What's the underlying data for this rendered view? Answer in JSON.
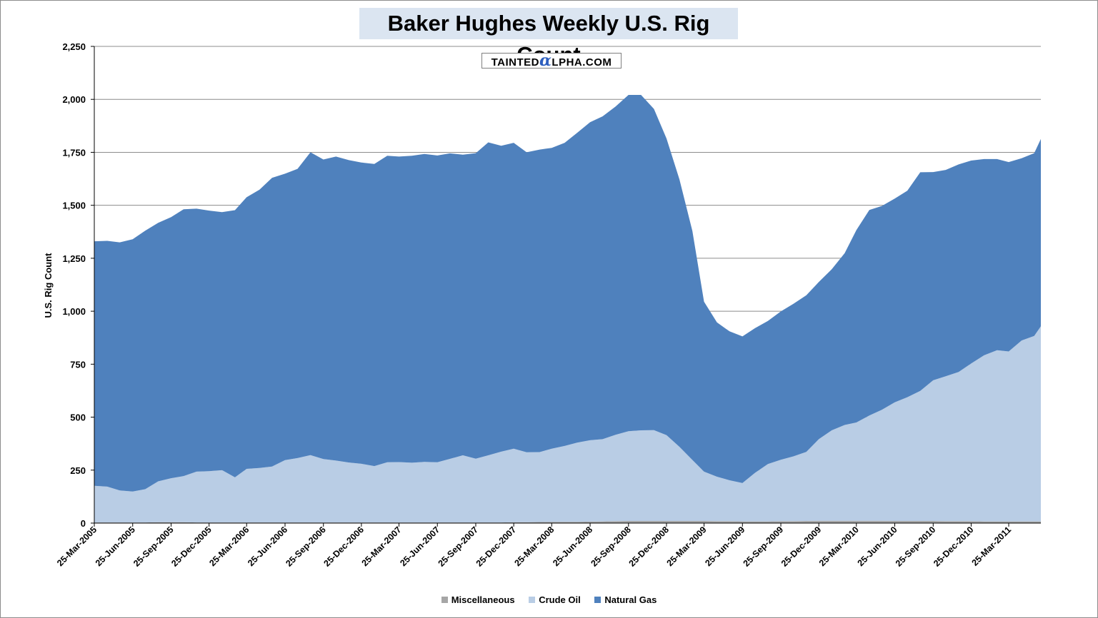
{
  "chart_data": {
    "type": "area",
    "stacked": true,
    "title": "Baker Hughes Weekly U.S. Rig Count",
    "watermark": "TaintedAlpha.com",
    "ylabel": "U.S. Rig Count",
    "xlabel": "",
    "ylim": [
      0,
      2250
    ],
    "yticks": [
      0,
      250,
      500,
      750,
      1000,
      1250,
      1500,
      1750,
      2000,
      2250
    ],
    "ytick_labels": [
      "0",
      "250",
      "500",
      "750",
      "1,000",
      "1,250",
      "1,500",
      "1,750",
      "2,000",
      "2,250"
    ],
    "xlim": [
      "25-Mar-2005",
      "10-Jun-2011"
    ],
    "xtick_labels": [
      "25-Mar-2005",
      "25-Jun-2005",
      "25-Sep-2005",
      "25-Dec-2005",
      "25-Mar-2006",
      "25-Jun-2006",
      "25-Sep-2006",
      "25-Dec-2006",
      "25-Mar-2007",
      "25-Jun-2007",
      "25-Sep-2007",
      "25-Dec-2007",
      "25-Mar-2008",
      "25-Jun-2008",
      "25-Sep-2008",
      "25-Dec-2008",
      "25-Mar-2009",
      "25-Jun-2009",
      "25-Sep-2009",
      "25-Dec-2009",
      "25-Mar-2010",
      "25-Jun-2010",
      "25-Sep-2010",
      "25-Dec-2010",
      "25-Mar-2011"
    ],
    "grid": true,
    "legend": "bottom",
    "dates": [
      "25-Mar-2005",
      "25-Apr-2005",
      "25-May-2005",
      "25-Jun-2005",
      "25-Jul-2005",
      "25-Aug-2005",
      "25-Sep-2005",
      "25-Oct-2005",
      "25-Nov-2005",
      "25-Dec-2005",
      "25-Jan-2006",
      "25-Feb-2006",
      "25-Mar-2006",
      "25-Apr-2006",
      "25-May-2006",
      "25-Jun-2006",
      "25-Jul-2006",
      "25-Aug-2006",
      "25-Sep-2006",
      "25-Oct-2006",
      "25-Nov-2006",
      "25-Dec-2006",
      "25-Jan-2007",
      "25-Feb-2007",
      "25-Mar-2007",
      "25-Apr-2007",
      "25-May-2007",
      "25-Jun-2007",
      "25-Jul-2007",
      "25-Aug-2007",
      "25-Sep-2007",
      "25-Oct-2007",
      "25-Nov-2007",
      "25-Dec-2007",
      "25-Jan-2008",
      "25-Feb-2008",
      "25-Mar-2008",
      "25-Apr-2008",
      "25-May-2008",
      "25-Jun-2008",
      "25-Jul-2008",
      "25-Aug-2008",
      "25-Sep-2008",
      "25-Oct-2008",
      "25-Nov-2008",
      "25-Dec-2008",
      "25-Jan-2009",
      "25-Feb-2009",
      "25-Mar-2009",
      "25-Apr-2009",
      "25-May-2009",
      "25-Jun-2009",
      "25-Jul-2009",
      "25-Aug-2009",
      "25-Sep-2009",
      "25-Oct-2009",
      "25-Nov-2009",
      "25-Dec-2009",
      "25-Jan-2010",
      "25-Feb-2010",
      "25-Mar-2010",
      "25-Apr-2010",
      "25-May-2010",
      "25-Jun-2010",
      "25-Jul-2010",
      "25-Aug-2010",
      "25-Sep-2010",
      "25-Oct-2010",
      "25-Nov-2010",
      "25-Dec-2010",
      "25-Jan-2011",
      "25-Feb-2011",
      "25-Mar-2011",
      "25-Apr-2011",
      "25-May-2011",
      "10-Jun-2011"
    ],
    "series": [
      {
        "name": "Miscellaneous",
        "color": "#a6a6a6",
        "values": [
          3,
          3,
          3,
          3,
          3,
          4,
          4,
          4,
          3,
          3,
          3,
          3,
          3,
          3,
          3,
          3,
          3,
          3,
          3,
          3,
          3,
          3,
          3,
          3,
          3,
          3,
          3,
          3,
          3,
          3,
          3,
          3,
          3,
          4,
          4,
          5,
          6,
          6,
          6,
          7,
          8,
          9,
          10,
          10,
          10,
          10,
          10,
          10,
          10,
          9,
          9,
          8,
          8,
          8,
          9,
          9,
          10,
          11,
          11,
          11,
          11,
          11,
          11,
          10,
          10,
          10,
          10,
          9,
          9,
          9,
          8,
          8,
          8,
          8,
          8,
          8
        ]
      },
      {
        "name": "Crude Oil",
        "color": "#b9cde5",
        "values": [
          173,
          169,
          151,
          146,
          157,
          193,
          208,
          218,
          240,
          242,
          247,
          213,
          253,
          257,
          264,
          294,
          304,
          318,
          299,
          292,
          283,
          277,
          266,
          284,
          285,
          282,
          286,
          284,
          300,
          317,
          301,
          317,
          334,
          347,
          330,
          330,
          345,
          358,
          374,
          384,
          388,
          408,
          424,
          428,
          429,
          405,
          350,
          288,
          233,
          210,
          193,
          181,
          229,
          271,
          290,
          306,
          326,
          385,
          427,
          452,
          464,
          497,
          524,
          560,
          584,
          614,
          664,
          684,
          704,
          744,
          784,
          808,
          802,
          854,
          875,
          921
        ]
      },
      {
        "name": "Natural Gas",
        "color": "#4f81bd",
        "values": [
          1154,
          1160,
          1171,
          1191,
          1220,
          1220,
          1232,
          1259,
          1241,
          1230,
          1218,
          1261,
          1282,
          1314,
          1363,
          1352,
          1365,
          1429,
          1414,
          1435,
          1427,
          1422,
          1426,
          1447,
          1442,
          1449,
          1453,
          1448,
          1442,
          1419,
          1442,
          1477,
          1444,
          1444,
          1416,
          1428,
          1420,
          1431,
          1462,
          1501,
          1524,
          1549,
          1587,
          1583,
          1516,
          1400,
          1262,
          1081,
          802,
          728,
          703,
          692,
          683,
          675,
          700,
          720,
          739,
          742,
          760,
          811,
          908,
          970,
          962,
          962,
          975,
          1032,
          983,
          974,
          980,
          958,
          926,
          902,
          894,
          860,
          863,
          884
        ]
      }
    ]
  }
}
